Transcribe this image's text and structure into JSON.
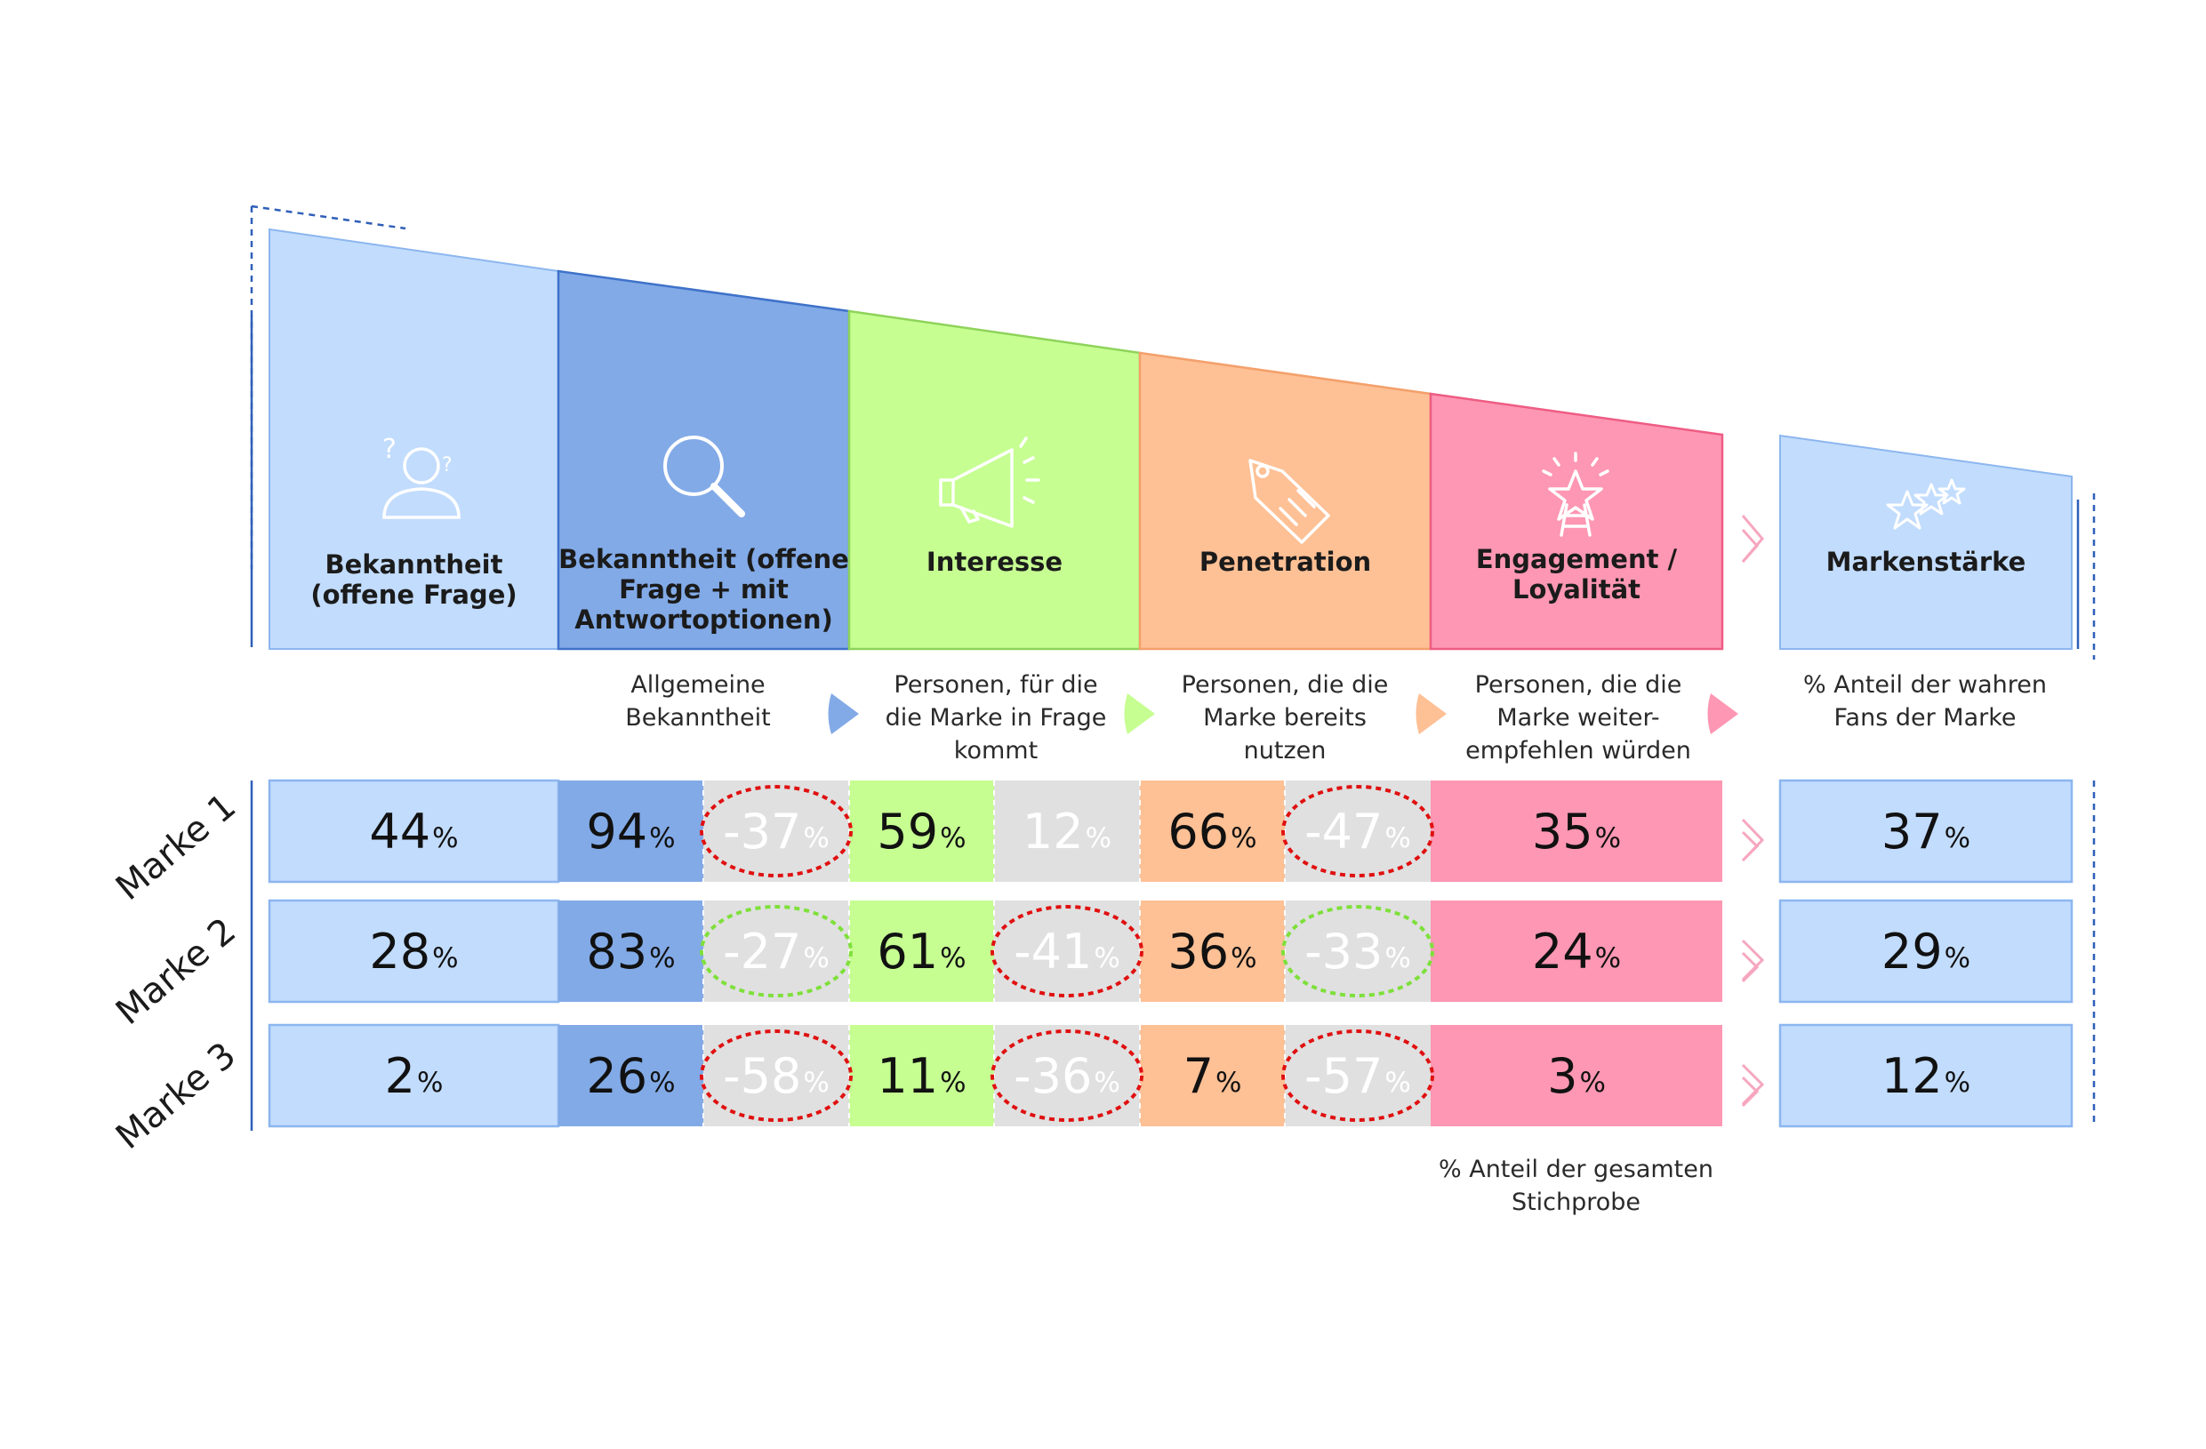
{
  "stages": [
    {
      "id": "bekanntheit-offen",
      "label_line1": "Bekanntheit",
      "label_line2": "(offene Frage)",
      "label_line3": "",
      "icon": "person-question-icon",
      "color": "#c2dcfd",
      "edge": "#8cb6ef"
    },
    {
      "id": "bekanntheit-gestuetzt",
      "label_line1": "Bekanntheit (offene",
      "label_line2": "Frage + mit",
      "label_line3": "Antwortoptionen)",
      "icon": "magnifier-icon",
      "color": "#82aae7",
      "edge": "#3f72c9"
    },
    {
      "id": "interesse",
      "label_line1": "Interesse",
      "label_line2": "",
      "label_line3": "",
      "icon": "megaphone-icon",
      "color": "#c6fe92",
      "edge": "#8fd35a"
    },
    {
      "id": "penetration",
      "label_line1": "Penetration",
      "label_line2": "",
      "label_line3": "",
      "icon": "price-tag-icon",
      "color": "#fec095",
      "edge": "#f3a06b"
    },
    {
      "id": "engagement",
      "label_line1": "Engagement /",
      "label_line2": "Loyalität",
      "label_line3": "",
      "icon": "star-ladder-icon",
      "color": "#fe97b3",
      "edge": "#ee5c83"
    },
    {
      "id": "markenstaerke",
      "label_line1": "Markenstärke",
      "label_line2": "",
      "label_line3": "",
      "icon": "stars-icon",
      "color": "#c2dcfd",
      "edge": "#8cb6ef"
    }
  ],
  "descriptions": [
    {
      "id": "allgemeine-bekanntheit",
      "line1": "Allgemeine",
      "line2": "Bekanntheit",
      "line3": ""
    },
    {
      "id": "interesse-desc",
      "line1": "Personen, für die",
      "line2": "die Marke in Frage",
      "line3": "kommt"
    },
    {
      "id": "penetration-desc",
      "line1": "Personen, die die",
      "line2": "Marke bereits",
      "line3": "nutzen"
    },
    {
      "id": "engagement-desc",
      "line1": "Personen, die die",
      "line2": "Marke weiter-",
      "line3": "empfehlen würden"
    },
    {
      "id": "markenstaerke-desc",
      "line1": "% Anteil der wahren",
      "line2": "Fans der Marke",
      "line3": ""
    }
  ],
  "footnote": {
    "line1": "% Anteil der gesamten",
    "line2": "Stichprobe"
  },
  "percent_sign": "%",
  "chart_data": {
    "type": "table",
    "rows": [
      "Marke 1",
      "Marke 2",
      "Marke 3"
    ],
    "columns": [
      "Bekanntheit (offene Frage)",
      "Bekanntheit (offene Frage + mit Antwortoptionen)",
      "Interesse",
      "Penetration",
      "Engagement / Loyalität",
      "Markenstärke"
    ],
    "values": [
      {
        "brand": "Marke 1",
        "bekanntheit_offen": 44,
        "bekanntheit_gesamt": 94,
        "loss_1": -37,
        "interesse": 59,
        "loss_2": 12,
        "penetration": 66,
        "loss_3": -47,
        "engagement": 35,
        "markenstaerke": 37
      },
      {
        "brand": "Marke 2",
        "bekanntheit_offen": 28,
        "bekanntheit_gesamt": 83,
        "loss_1": -27,
        "interesse": 61,
        "loss_2": -41,
        "penetration": 36,
        "loss_3": -33,
        "engagement": 24,
        "markenstaerke": 29
      },
      {
        "brand": "Marke 3",
        "bekanntheit_offen": 2,
        "bekanntheit_gesamt": 26,
        "loss_1": -58,
        "interesse": 11,
        "loss_2": -36,
        "penetration": 7,
        "loss_3": -57,
        "engagement": 3,
        "markenstaerke": 12
      }
    ],
    "loss_highlight": [
      [
        "red",
        "none",
        "red"
      ],
      [
        "green",
        "red",
        "green"
      ],
      [
        "red",
        "red",
        "red"
      ]
    ],
    "highlight_colors": {
      "red": "#e01010",
      "green": "#7ee03a"
    }
  }
}
